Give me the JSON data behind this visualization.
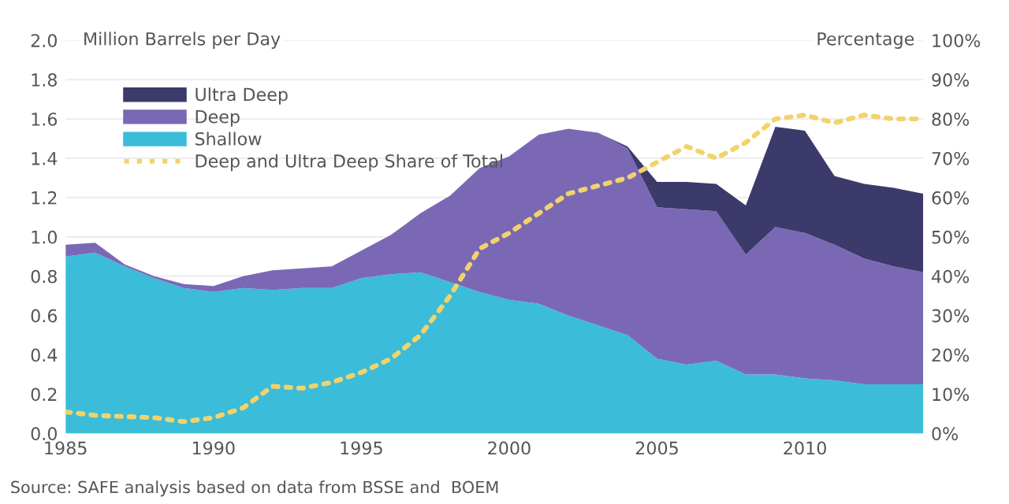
{
  "chart_data": {
    "type": "area",
    "stacked": true,
    "ylabel": "Million Barrels per Day",
    "y2label": "Percentage",
    "x": [
      1985,
      1986,
      1987,
      1988,
      1989,
      1990,
      1991,
      1992,
      1993,
      1994,
      1995,
      1996,
      1997,
      1998,
      1999,
      2000,
      2001,
      2002,
      2003,
      2004,
      2005,
      2006,
      2007,
      2008,
      2009,
      2010,
      2011,
      2012,
      2013,
      2014
    ],
    "series": [
      {
        "name": "Shallow",
        "color": "#3bbcd9",
        "values": [
          0.9,
          0.92,
          0.85,
          0.79,
          0.74,
          0.72,
          0.74,
          0.73,
          0.74,
          0.74,
          0.79,
          0.81,
          0.82,
          0.77,
          0.72,
          0.68,
          0.66,
          0.6,
          0.55,
          0.5,
          0.38,
          0.35,
          0.37,
          0.3,
          0.3,
          0.28,
          0.27,
          0.25,
          0.25,
          0.25
        ]
      },
      {
        "name": "Deep",
        "color": "#7b68b5",
        "values": [
          0.06,
          0.05,
          0.01,
          0.01,
          0.02,
          0.03,
          0.06,
          0.1,
          0.1,
          0.11,
          0.14,
          0.2,
          0.3,
          0.44,
          0.63,
          0.73,
          0.86,
          0.95,
          0.98,
          0.95,
          0.77,
          0.79,
          0.76,
          0.61,
          0.75,
          0.74,
          0.69,
          0.64,
          0.6,
          0.57
        ]
      },
      {
        "name": "Ultra Deep",
        "color": "#3b3a6b",
        "values": [
          0,
          0,
          0,
          0,
          0,
          0,
          0,
          0,
          0,
          0,
          0,
          0,
          0,
          0,
          0,
          0,
          0,
          0,
          0,
          0.01,
          0.13,
          0.14,
          0.14,
          0.25,
          0.51,
          0.52,
          0.35,
          0.38,
          0.4,
          0.4
        ]
      },
      {
        "name": "Deep and Ultra Deep Share of Total",
        "type": "line",
        "axis": "y2",
        "color": "#f2d36b",
        "line_style": "dotted",
        "values": [
          5.5,
          4.6,
          4.3,
          4,
          3,
          4,
          6.5,
          12,
          11.5,
          13,
          15.5,
          19,
          25,
          35,
          47,
          51,
          56,
          61,
          63,
          65,
          69,
          73,
          70,
          74,
          80,
          81,
          79,
          81,
          80,
          80
        ]
      }
    ],
    "xlim": [
      1985,
      2014
    ],
    "xticks": [
      {
        "value": 1985,
        "label": "1985"
      },
      {
        "value": 1990,
        "label": "1990"
      },
      {
        "value": 1995,
        "label": "1995"
      },
      {
        "value": 2000,
        "label": "2000"
      },
      {
        "value": 2005,
        "label": "2005"
      },
      {
        "value": 2010,
        "label": "2010"
      }
    ],
    "ylim": [
      0,
      2.0
    ],
    "yticks": [
      {
        "value": 0,
        "label": "0.0"
      },
      {
        "value": 0.2,
        "label": "0.2"
      },
      {
        "value": 0.4,
        "label": "0.4"
      },
      {
        "value": 0.6,
        "label": "0.6"
      },
      {
        "value": 0.8,
        "label": "0.8"
      },
      {
        "value": 1.0,
        "label": "1.0"
      },
      {
        "value": 1.2,
        "label": "1.2"
      },
      {
        "value": 1.4,
        "label": "1.4"
      },
      {
        "value": 1.6,
        "label": "1.6"
      },
      {
        "value": 1.8,
        "label": "1.8"
      },
      {
        "value": 2.0,
        "label": "2.0"
      }
    ],
    "y2lim": [
      0,
      100
    ],
    "y2ticks": [
      {
        "value": 0,
        "label": "0%"
      },
      {
        "value": 10,
        "label": "10%"
      },
      {
        "value": 20,
        "label": "20%"
      },
      {
        "value": 30,
        "label": "30%"
      },
      {
        "value": 40,
        "label": "40%"
      },
      {
        "value": 50,
        "label": "50%"
      },
      {
        "value": 60,
        "label": "60%"
      },
      {
        "value": 70,
        "label": "70%"
      },
      {
        "value": 80,
        "label": "80%"
      },
      {
        "value": 90,
        "label": "90%"
      },
      {
        "value": 100,
        "label": "100%"
      }
    ],
    "grid": "y",
    "legend": "top left",
    "annotations": [
      "Source: SAFE analysis based on data from BSSE and  BOEM"
    ]
  }
}
